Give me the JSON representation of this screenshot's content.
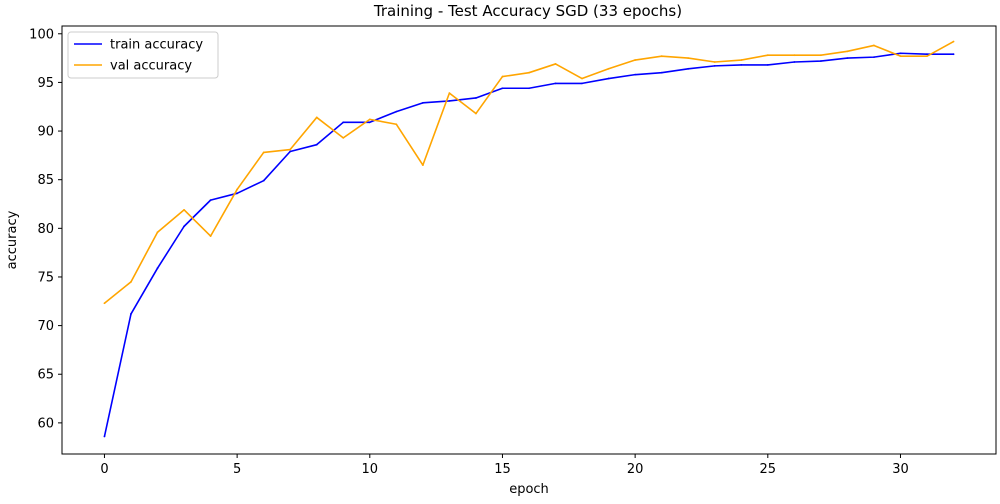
{
  "chart_data": {
    "type": "line",
    "title": "Training - Test Accuracy SGD (33 epochs)",
    "xlabel": "epoch",
    "ylabel": "accuracy",
    "xlim": [
      -1.6,
      33.6
    ],
    "ylim": [
      56.8,
      100.8
    ],
    "xticks": [
      0,
      5,
      10,
      15,
      20,
      25,
      30
    ],
    "yticks": [
      60,
      65,
      70,
      75,
      80,
      85,
      90,
      95,
      100
    ],
    "grid": false,
    "legend_position": "top-left",
    "x": [
      0,
      1,
      2,
      3,
      4,
      5,
      6,
      7,
      8,
      9,
      10,
      11,
      12,
      13,
      14,
      15,
      16,
      17,
      18,
      19,
      20,
      21,
      22,
      23,
      24,
      25,
      26,
      27,
      28,
      29,
      30,
      31,
      32
    ],
    "series": [
      {
        "name": "train accuracy",
        "color": "#0000ff",
        "values": [
          58.6,
          71.2,
          75.9,
          80.2,
          82.9,
          83.6,
          84.9,
          87.9,
          88.6,
          90.9,
          90.9,
          92.0,
          92.9,
          93.1,
          93.4,
          94.4,
          94.4,
          94.9,
          94.9,
          95.4,
          95.8,
          96.0,
          96.4,
          96.7,
          96.8,
          96.8,
          97.1,
          97.2,
          97.5,
          97.6,
          98.0,
          97.9,
          97.9
        ]
      },
      {
        "name": "val accuracy",
        "color": "#ffa500",
        "values": [
          72.3,
          74.5,
          79.6,
          81.9,
          79.2,
          84.0,
          87.8,
          88.1,
          91.4,
          89.3,
          91.2,
          90.7,
          86.5,
          93.9,
          91.8,
          95.6,
          96.0,
          96.9,
          95.4,
          96.4,
          97.3,
          97.7,
          97.5,
          97.1,
          97.3,
          97.8,
          97.8,
          97.8,
          98.2,
          98.8,
          97.7,
          97.7,
          99.2
        ]
      }
    ]
  }
}
